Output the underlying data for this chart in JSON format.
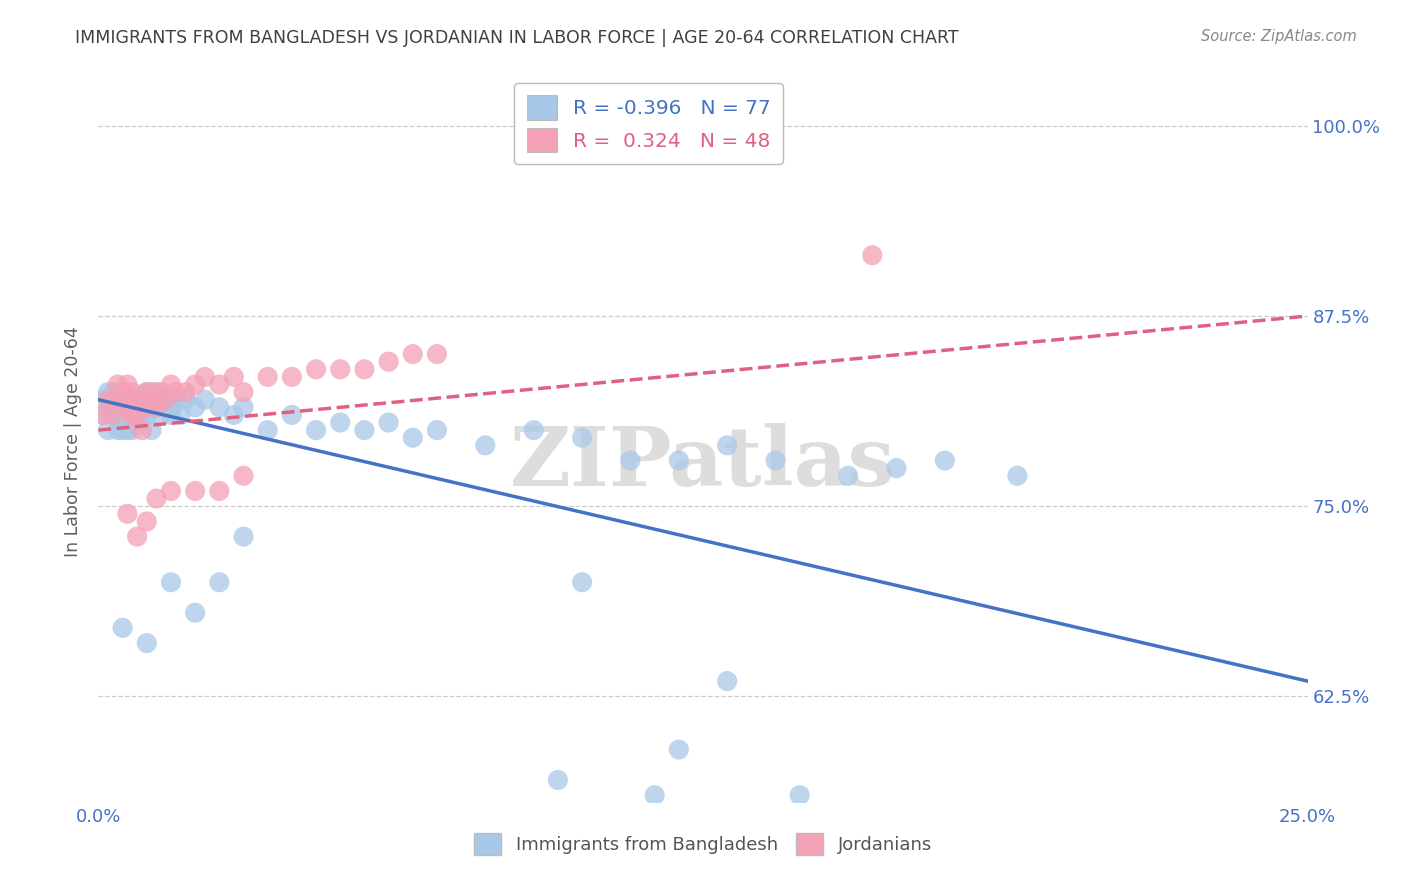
{
  "title": "IMMIGRANTS FROM BANGLADESH VS JORDANIAN IN LABOR FORCE | AGE 20-64 CORRELATION CHART",
  "source": "Source: ZipAtlas.com",
  "ylabel": "In Labor Force | Age 20-64",
  "xlim": [
    0.0,
    0.25
  ],
  "ylim": [
    0.555,
    1.03
  ],
  "ytick_positions": [
    0.625,
    0.75,
    0.875,
    1.0
  ],
  "ytick_labels": [
    "62.5%",
    "75.0%",
    "87.5%",
    "100.0%"
  ],
  "xtick_positions": [
    0.0,
    0.05,
    0.1,
    0.15,
    0.2,
    0.25
  ],
  "xtick_labels": [
    "0.0%",
    "",
    "",
    "",
    "",
    "25.0%"
  ],
  "legend_r_blue": "-0.396",
  "legend_n_blue": "77",
  "legend_r_pink": "0.324",
  "legend_n_pink": "48",
  "blue_fill": "#A8C8E8",
  "pink_fill": "#F4A0B5",
  "blue_line": "#4472C4",
  "pink_line": "#E06080",
  "bg_color": "#FFFFFF",
  "grid_color": "#CCCCCC",
  "title_color": "#404040",
  "axis_tick_color": "#4472C4",
  "ylabel_color": "#606060",
  "watermark": "ZIPatlas",
  "watermark_color": "#DDDDDD",
  "source_color": "#888888",
  "blue_x": [
    0.001,
    0.001,
    0.002,
    0.002,
    0.003,
    0.003,
    0.003,
    0.004,
    0.004,
    0.004,
    0.005,
    0.005,
    0.005,
    0.006,
    0.006,
    0.006,
    0.006,
    0.007,
    0.007,
    0.007,
    0.007,
    0.008,
    0.008,
    0.008,
    0.009,
    0.009,
    0.01,
    0.01,
    0.01,
    0.011,
    0.011,
    0.012,
    0.012,
    0.013,
    0.013,
    0.014,
    0.015,
    0.015,
    0.016,
    0.017,
    0.018,
    0.02,
    0.022,
    0.025,
    0.028,
    0.03,
    0.035,
    0.04,
    0.045,
    0.05,
    0.055,
    0.06,
    0.065,
    0.07,
    0.08,
    0.09,
    0.1,
    0.11,
    0.12,
    0.13,
    0.14,
    0.155,
    0.165,
    0.175,
    0.19,
    0.005,
    0.01,
    0.015,
    0.02,
    0.025,
    0.03,
    0.1,
    0.13,
    0.115,
    0.095,
    0.12,
    0.145
  ],
  "blue_y": [
    0.82,
    0.81,
    0.825,
    0.8,
    0.815,
    0.825,
    0.81,
    0.82,
    0.81,
    0.8,
    0.82,
    0.815,
    0.8,
    0.815,
    0.82,
    0.81,
    0.8,
    0.82,
    0.815,
    0.81,
    0.8,
    0.82,
    0.815,
    0.81,
    0.82,
    0.81,
    0.825,
    0.82,
    0.81,
    0.815,
    0.8,
    0.825,
    0.815,
    0.82,
    0.81,
    0.815,
    0.815,
    0.81,
    0.82,
    0.81,
    0.82,
    0.815,
    0.82,
    0.815,
    0.81,
    0.815,
    0.8,
    0.81,
    0.8,
    0.805,
    0.8,
    0.805,
    0.795,
    0.8,
    0.79,
    0.8,
    0.795,
    0.78,
    0.78,
    0.79,
    0.78,
    0.77,
    0.775,
    0.78,
    0.77,
    0.67,
    0.66,
    0.7,
    0.68,
    0.7,
    0.73,
    0.7,
    0.635,
    0.56,
    0.57,
    0.59,
    0.56
  ],
  "pink_x": [
    0.001,
    0.002,
    0.003,
    0.003,
    0.004,
    0.005,
    0.005,
    0.006,
    0.006,
    0.007,
    0.007,
    0.008,
    0.008,
    0.009,
    0.01,
    0.01,
    0.011,
    0.012,
    0.013,
    0.014,
    0.015,
    0.016,
    0.018,
    0.02,
    0.022,
    0.025,
    0.028,
    0.03,
    0.035,
    0.04,
    0.045,
    0.05,
    0.055,
    0.06,
    0.065,
    0.07,
    0.008,
    0.01,
    0.012,
    0.015,
    0.02,
    0.025,
    0.03,
    0.007,
    0.009,
    0.012,
    0.006,
    0.16
  ],
  "pink_y": [
    0.81,
    0.82,
    0.81,
    0.82,
    0.83,
    0.825,
    0.82,
    0.815,
    0.83,
    0.81,
    0.825,
    0.82,
    0.81,
    0.82,
    0.825,
    0.815,
    0.825,
    0.82,
    0.825,
    0.82,
    0.83,
    0.825,
    0.825,
    0.83,
    0.835,
    0.83,
    0.835,
    0.825,
    0.835,
    0.835,
    0.84,
    0.84,
    0.84,
    0.845,
    0.85,
    0.85,
    0.73,
    0.74,
    0.755,
    0.76,
    0.76,
    0.76,
    0.77,
    0.81,
    0.8,
    0.815,
    0.745,
    0.915
  ],
  "blue_line_x0": 0.0,
  "blue_line_y0": 0.82,
  "blue_line_x1": 0.25,
  "blue_line_y1": 0.635,
  "pink_line_x0": 0.0,
  "pink_line_y0": 0.8,
  "pink_line_x1": 0.25,
  "pink_line_y1": 0.875
}
